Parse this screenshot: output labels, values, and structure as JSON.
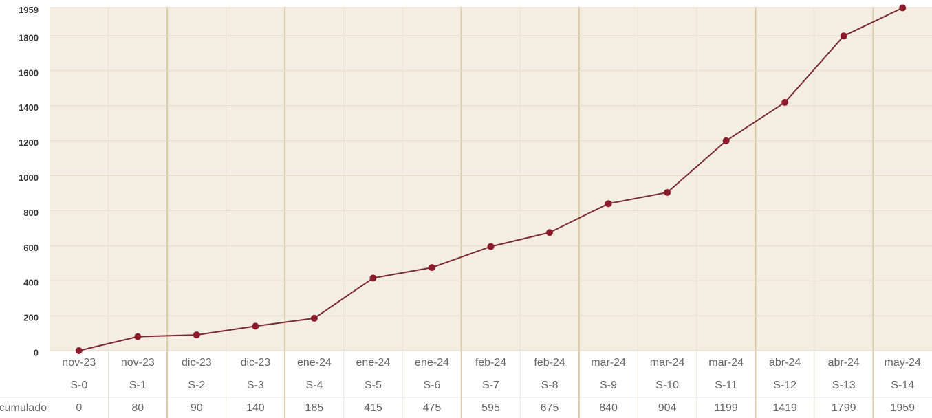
{
  "chart_data": {
    "type": "line",
    "categories": [
      "nov-23",
      "nov-23",
      "dic-23",
      "dic-23",
      "ene-24",
      "ene-24",
      "ene-24",
      "feb-24",
      "feb-24",
      "mar-24",
      "mar-24",
      "mar-24",
      "abr-24",
      "abr-24",
      "may-24"
    ],
    "weeks": [
      "S-0",
      "S-1",
      "S-2",
      "S-3",
      "S-4",
      "S-5",
      "S-6",
      "S-7",
      "S-8",
      "S-9",
      "S-10",
      "S-11",
      "S-12",
      "S-13",
      "S-14"
    ],
    "series": [
      {
        "name": "Acumulado",
        "color": "#7b2a35",
        "values": [
          0,
          80,
          90,
          140,
          185,
          415,
          475,
          595,
          675,
          840,
          904,
          1199,
          1419,
          1799,
          1959
        ]
      }
    ],
    "ylim": [
      0,
      1959
    ],
    "yticks": [
      0,
      200,
      400,
      600,
      800,
      1000,
      1200,
      1400,
      1600,
      1800,
      1959
    ],
    "grid": true
  }
}
